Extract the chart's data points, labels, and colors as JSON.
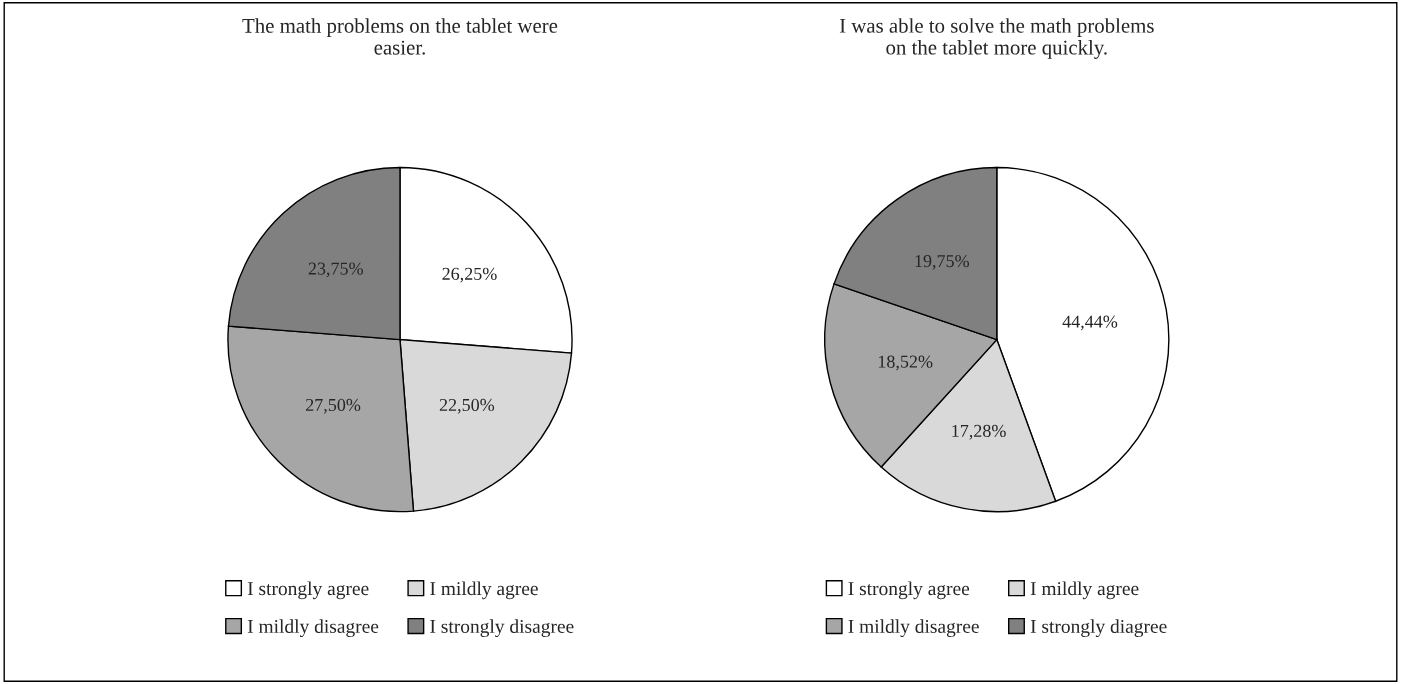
{
  "chart_data": [
    {
      "type": "pie",
      "title": "The math problems on the tablet were easier.",
      "categories": [
        "I strongly agree",
        "I mildly agree",
        "I mildly disagree",
        "I strongly disagree"
      ],
      "values": [
        26.25,
        22.5,
        27.5,
        23.75
      ],
      "value_labels": [
        "26,25%",
        "22,50%",
        "27,50%",
        "23,75%"
      ],
      "colors": [
        "#ffffff",
        "#d9d9d9",
        "#a6a6a6",
        "#808080"
      ],
      "legend": "bottom"
    },
    {
      "type": "pie",
      "title": "I was able to solve the math problems on the tablet more quickly.",
      "categories": [
        "I strongly agree",
        "I mildly agree",
        "I mildly disagree",
        "I strongly diagree"
      ],
      "values": [
        44.44,
        17.28,
        18.52,
        19.75
      ],
      "value_labels": [
        "44,44%",
        "17,28%",
        "18,52%",
        "19,75%"
      ],
      "colors": [
        "#ffffff",
        "#d9d9d9",
        "#a6a6a6",
        "#808080"
      ],
      "legend": "bottom"
    }
  ]
}
